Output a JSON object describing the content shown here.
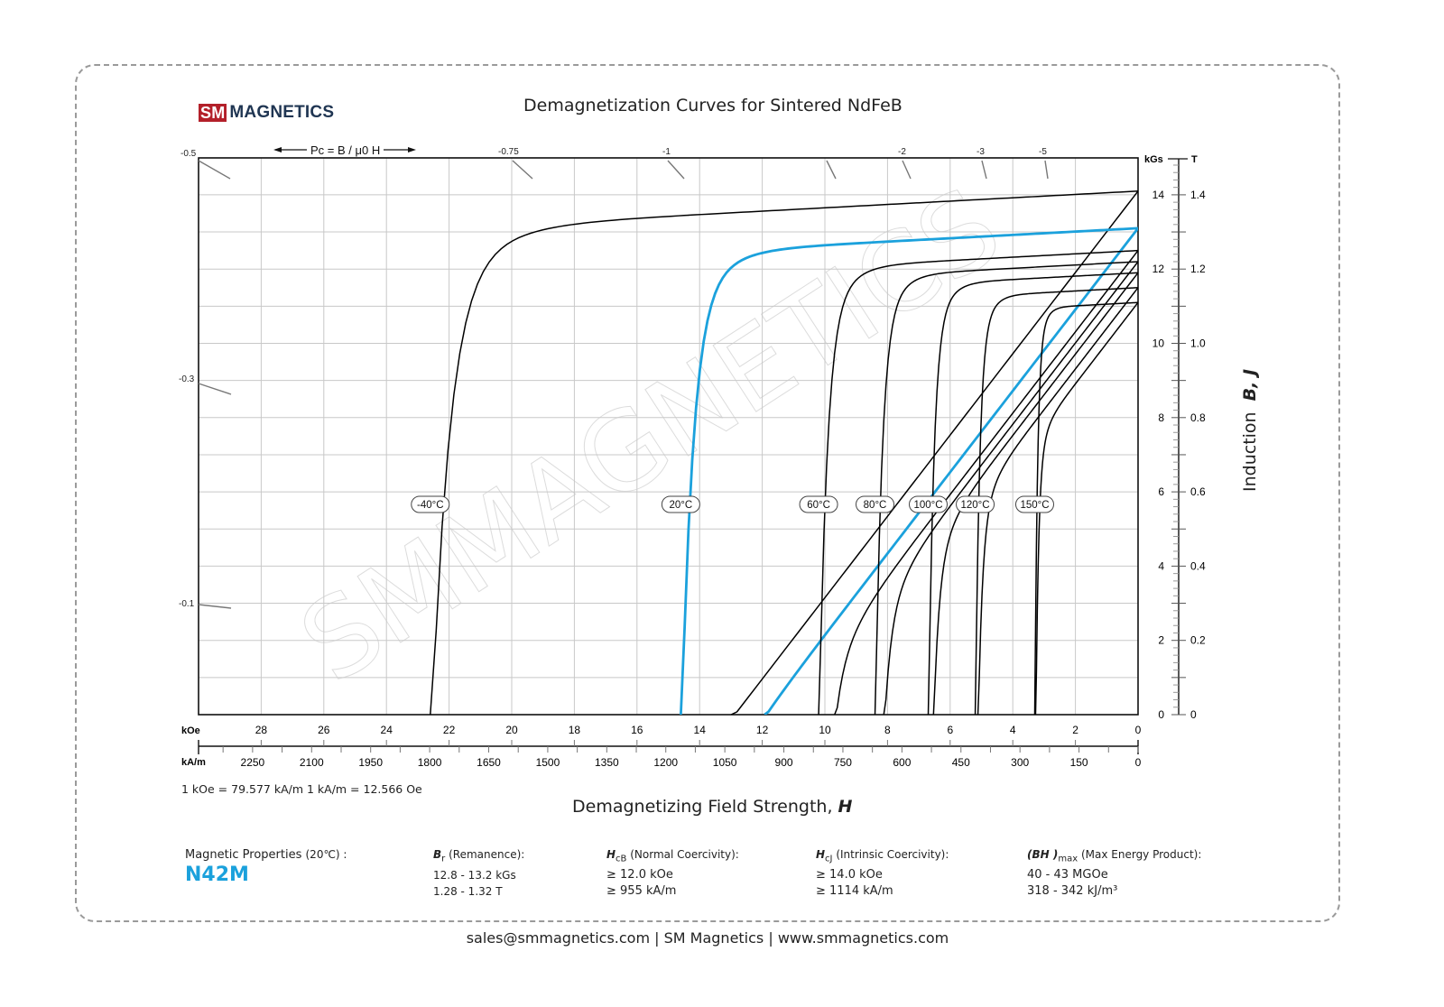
{
  "header": {
    "logo_mark": "SM",
    "logo_text": "MAGNETICS",
    "title": "Demagnetization Curves for Sintered NdFeB"
  },
  "pc_label": "Pc = B / μ0 H",
  "axes": {
    "x_unit_top": "kOe",
    "x_unit_bottom": "kA/m",
    "y_unit_left": "kGs",
    "y_unit_right": "T",
    "x_title": "Demagnetizing Field Strength, H",
    "y_title": "Induction B, J",
    "conversion": "1 kOe = 79.577 kA/m   1 kA/m = 12.566 Oe"
  },
  "properties": {
    "label": "Magnetic Properties",
    "temp": "(20℃) :",
    "grade": "N42M",
    "br": {
      "symbol": "B",
      "sub": "r",
      "name": "(Remanence):",
      "v1": "12.8 - 13.2 kGs",
      "v2": "1.28 - 1.32 T"
    },
    "hcb": {
      "symbol": "H",
      "sub": "cB",
      "name": "(Normal Coercivity):",
      "v1": "≥ 12.0 kOe",
      "v2": "≥ 955 kA/m"
    },
    "hcj": {
      "symbol": "H",
      "sub": "cJ",
      "name": "(Intrinsic Coercivity):",
      "v1": "≥ 14.0 kOe",
      "v2": "≥ 1114 kA/m"
    },
    "bhmax": {
      "symbol": "(BH )",
      "sub": "max",
      "name": "(Max Energy Product):",
      "v1": "40 - 43 MGOe",
      "v2": "318 - 342 kJ/m³"
    }
  },
  "footer": "sales@smmagnetics.com | SM Magnetics | www.smmagnetics.com",
  "colors": {
    "accent": "#1ba1dc",
    "curve": "#000000",
    "grid": "#c8c8c8",
    "logo_red": "#b3202a",
    "logo_navy": "#1f3552"
  },
  "chart_data": {
    "type": "line",
    "title": "Demagnetization Curves for Sintered NdFeB",
    "xlabel": "Demagnetizing Field Strength, H (kOe)",
    "ylabel": "Induction B, J (kGs)",
    "xlim": [
      30,
      0
    ],
    "ylim": [
      0,
      15
    ],
    "x_ticks_koe": [
      28,
      26,
      24,
      22,
      20,
      18,
      16,
      14,
      12,
      10,
      8,
      6,
      4,
      2,
      0
    ],
    "x_ticks_kam": [
      2250,
      2100,
      1950,
      1800,
      1650,
      1500,
      1350,
      1200,
      1050,
      900,
      750,
      600,
      450,
      300,
      150,
      0
    ],
    "y_ticks_kgs": [
      0,
      2,
      4,
      6,
      8,
      10,
      12,
      14
    ],
    "y_ticks_t": [
      "0",
      "0.2",
      "0.4",
      "0.6",
      "0.8",
      "1.0",
      "1.2",
      "1.4"
    ],
    "pc_lines": [
      "-0.1",
      "-0.3",
      "-0.5",
      "-0.75",
      "-1",
      "-2",
      "-3",
      "-5"
    ],
    "grid": true,
    "series": [
      {
        "name": "-40°C",
        "Br_kGs": 14.1,
        "HcJ_kOe": 22.6,
        "HcB_kOe": 13.6,
        "color": "#000000"
      },
      {
        "name": "20°C",
        "Br_kGs": 13.1,
        "HcJ_kOe": 14.6,
        "HcB_kOe": 12.5,
        "color": "#1ba1dc"
      },
      {
        "name": "60°C",
        "Br_kGs": 12.5,
        "HcJ_kOe": 10.2,
        "HcB_kOe": 10.0,
        "color": "#000000"
      },
      {
        "name": "80°C",
        "Br_kGs": 12.2,
        "HcJ_kOe": 8.4,
        "HcB_kOe": 8.4,
        "color": "#000000"
      },
      {
        "name": "100°C",
        "Br_kGs": 11.9,
        "HcJ_kOe": 6.7,
        "HcB_kOe": 6.7,
        "color": "#000000"
      },
      {
        "name": "120°C",
        "Br_kGs": 11.5,
        "HcJ_kOe": 5.2,
        "HcB_kOe": 5.2,
        "color": "#000000"
      },
      {
        "name": "150°C",
        "Br_kGs": 11.1,
        "HcJ_kOe": 3.3,
        "HcB_kOe": 3.3,
        "color": "#000000"
      }
    ]
  }
}
